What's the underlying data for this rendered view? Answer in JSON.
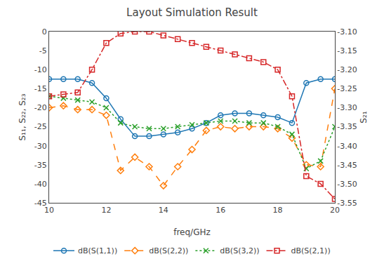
{
  "chart_data": {
    "type": "line",
    "title": "Layout Simulation Result",
    "x_label": "freq/GHz",
    "y_label": "S₁₁, S₂₂, S₂₃",
    "y2_label": "S₂₁",
    "x": [
      10,
      10.5,
      11,
      11.5,
      12,
      12.5,
      13,
      13.5,
      14,
      14.5,
      15,
      15.5,
      16,
      16.5,
      17,
      17.5,
      18,
      18.5,
      19,
      19.5,
      20
    ],
    "series": [
      {
        "name": "dB(S(1,1))",
        "line_style": "solid",
        "marker": "circle-open",
        "values": [
          -12.5,
          -12.5,
          -12.5,
          -13.5,
          -17.5,
          -23.0,
          -27.5,
          -27.5,
          -27.0,
          -26.5,
          -25.5,
          -24.0,
          -22.0,
          -21.5,
          -21.5,
          -22.0,
          -22.5,
          -24.0,
          -13.5,
          -12.5,
          -12.5
        ]
      },
      {
        "name": "dB(S(2,2))",
        "line_style": "dash",
        "marker": "diamond-open",
        "values": [
          -20.0,
          -19.5,
          -20.5,
          -20.5,
          -22.0,
          -36.5,
          -33.0,
          -35.5,
          -40.5,
          -35.5,
          -31.0,
          -26.0,
          -25.0,
          -25.5,
          -25.0,
          -25.0,
          -25.5,
          -28.0,
          -35.0,
          -35.5,
          -15.0
        ]
      },
      {
        "name": "dB(S(3,2))",
        "line_style": "dot",
        "marker": "x-thin-open",
        "values": [
          -17.0,
          -17.5,
          -18.0,
          -18.5,
          -20.0,
          -24.0,
          -25.0,
          -25.5,
          -25.5,
          -25.0,
          -24.5,
          -24.0,
          -23.5,
          -23.5,
          -24.0,
          -24.0,
          -25.0,
          -27.0,
          -36.0,
          -34.0,
          -25.0
        ]
      },
      {
        "name": "dB(S(2,1))",
        "line_style": "dashdot",
        "marker": "square-open",
        "axis": "y2",
        "values": [
          -3.27,
          -3.265,
          -3.26,
          -3.2,
          -3.13,
          -3.105,
          -3.1,
          -3.1,
          -3.11,
          -3.12,
          -3.13,
          -3.14,
          -3.15,
          -3.16,
          -3.17,
          -3.18,
          -3.2,
          -3.27,
          -3.48,
          -3.5,
          -3.54
        ]
      }
    ],
    "xlim": [
      10,
      20
    ],
    "xticks": [
      10,
      12,
      14,
      16,
      18,
      20
    ],
    "ylim": [
      -45,
      0
    ],
    "yticks": [
      0,
      -5,
      -10,
      -15,
      -20,
      -25,
      -30,
      -35,
      -40,
      -45
    ],
    "y2lim": [
      -3.55,
      -3.1
    ],
    "y2ticks": [
      {
        "value": -3.1,
        "label": "-3.10"
      },
      -3.15,
      {
        "value": -3.2,
        "label": "-3.20"
      },
      -3.25,
      {
        "value": -3.3,
        "label": "-3.30"
      },
      -3.35,
      {
        "value": -3.4,
        "label": "-3.40"
      },
      -3.45,
      {
        "value": -3.5,
        "label": "-3.50"
      },
      -3.55
    ],
    "grid": false,
    "legend": "bottom"
  }
}
